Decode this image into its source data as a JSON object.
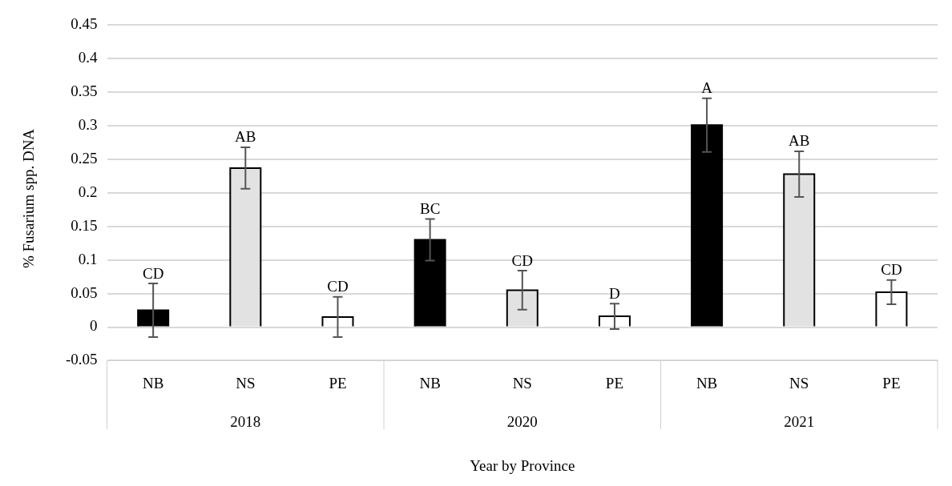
{
  "chart_data": {
    "type": "bar",
    "xlabel": "Year by Province",
    "ylabel": "% Fusarium spp. DNA",
    "categories": [
      "NB",
      "NS",
      "PE",
      "NB",
      "NS",
      "PE",
      "NB",
      "NS",
      "PE"
    ],
    "values": [
      0.025,
      0.237,
      0.015,
      0.13,
      0.055,
      0.016,
      0.301,
      0.228,
      0.052
    ],
    "colors": [
      "#000000",
      "#e2e2e2",
      "#ffffff",
      "#000000",
      "#e2e2e2",
      "#ffffff",
      "#000000",
      "#e2e2e2",
      "#ffffff"
    ],
    "errors": [
      0.04,
      0.031,
      0.03,
      0.031,
      0.029,
      0.019,
      0.04,
      0.034,
      0.018
    ],
    "value_labels": [
      "CD",
      "AB",
      "CD",
      "BC",
      "CD",
      "D",
      "A",
      "AB",
      "CD"
    ],
    "annotations": [
      "2018",
      "2020",
      "2021"
    ],
    "ylim": [
      -0.05,
      0.45
    ],
    "yticks": [
      -0.05,
      0,
      0.05,
      0.1,
      0.15,
      0.2,
      0.25,
      0.3,
      0.35,
      0.4,
      0.45
    ],
    "grid": "y",
    "legend": false
  }
}
